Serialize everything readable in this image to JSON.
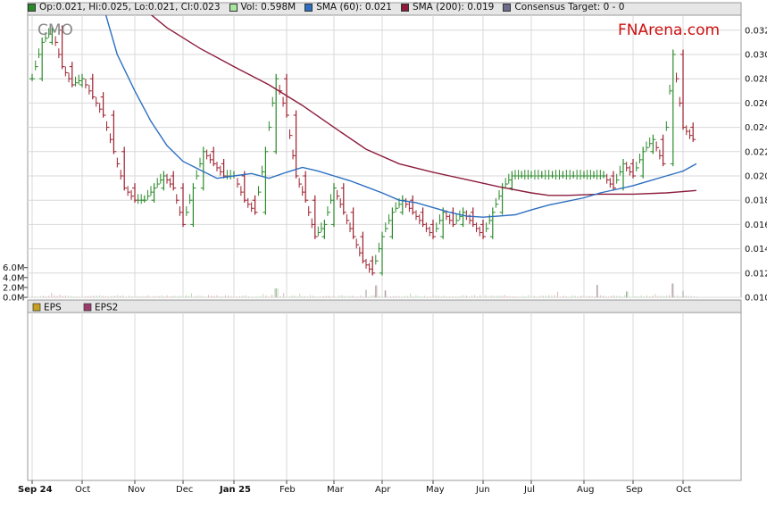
{
  "header": {
    "legend": [
      {
        "label": "Op:0.021, Hi:0.025, Lo:0.021, Cl:0.023",
        "color": "#2a8a2a"
      },
      {
        "label": "Vol: 0.598M",
        "color": "#a8e6a0"
      },
      {
        "label": "SMA (60): 0.021",
        "color": "#2c6fc1"
      },
      {
        "label": "SMA (200): 0.019",
        "color": "#8c1c3c"
      },
      {
        "label": "Consensus Target: 0 - 0",
        "color": "#6b6b8c"
      }
    ],
    "ticker": "CMO",
    "brand": "FNArena.com",
    "brand_color": "#cc1111"
  },
  "lower_legend": [
    {
      "label": "EPS",
      "color": "#c8a020"
    },
    {
      "label": "EPS2",
      "color": "#9c3c6c"
    }
  ],
  "chart_data": {
    "type": "bar",
    "subtype": "ohlc-bars",
    "x_ticks": [
      "Sep 24",
      "Oct",
      "Nov",
      "Dec",
      "Jan 25",
      "Feb",
      "Mar",
      "Apr",
      "May",
      "Jun",
      "Jul",
      "Aug",
      "Sep",
      "Oct"
    ],
    "bold_ticks": [
      "Sep 24",
      "Jan 25"
    ],
    "price_axis": {
      "ticks": [
        "0.032",
        "0.030",
        "0.028",
        "0.026",
        "0.024",
        "0.022",
        "0.020",
        "0.018",
        "0.016",
        "0.014",
        "0.012",
        "0.010"
      ],
      "ylim": [
        0.01,
        0.0325
      ]
    },
    "volume_axis": {
      "ticks": [
        "6.0M",
        "4.0M",
        "2.0M",
        "0.0M"
      ],
      "ylim": [
        0,
        7.0
      ]
    },
    "grid": true,
    "colors": {
      "up": "#2a8a2a",
      "down": "#9c1f2e",
      "sma60": "#2c6fc1",
      "sma200": "#8c1c3c",
      "volume": "#b0b0b0"
    },
    "price_points": [
      {
        "t": 0.0,
        "c": 0.028
      },
      {
        "t": 0.3,
        "c": 0.031
      },
      {
        "t": 0.6,
        "c": 0.032
      },
      {
        "t": 0.9,
        "c": 0.029
      },
      {
        "t": 1.2,
        "c": 0.0275
      },
      {
        "t": 1.5,
        "c": 0.028
      },
      {
        "t": 1.8,
        "c": 0.0265
      },
      {
        "t": 2.1,
        "c": 0.025
      },
      {
        "t": 2.4,
        "c": 0.022
      },
      {
        "t": 2.7,
        "c": 0.019
      },
      {
        "t": 3.0,
        "c": 0.018
      },
      {
        "t": 3.3,
        "c": 0.018
      },
      {
        "t": 3.6,
        "c": 0.019
      },
      {
        "t": 3.9,
        "c": 0.02
      },
      {
        "t": 4.2,
        "c": 0.019
      },
      {
        "t": 4.5,
        "c": 0.016
      },
      {
        "t": 4.8,
        "c": 0.019
      },
      {
        "t": 5.1,
        "c": 0.022
      },
      {
        "t": 5.4,
        "c": 0.021
      },
      {
        "t": 5.7,
        "c": 0.02
      },
      {
        "t": 6.0,
        "c": 0.02
      },
      {
        "t": 6.3,
        "c": 0.018
      },
      {
        "t": 6.6,
        "c": 0.017
      },
      {
        "t": 6.9,
        "c": 0.022
      },
      {
        "t": 7.2,
        "c": 0.028
      },
      {
        "t": 7.5,
        "c": 0.025
      },
      {
        "t": 7.8,
        "c": 0.02
      },
      {
        "t": 8.1,
        "c": 0.018
      },
      {
        "t": 8.4,
        "c": 0.015
      },
      {
        "t": 8.7,
        "c": 0.016
      },
      {
        "t": 9.0,
        "c": 0.019
      },
      {
        "t": 9.3,
        "c": 0.017
      },
      {
        "t": 9.6,
        "c": 0.015
      },
      {
        "t": 9.9,
        "c": 0.013
      },
      {
        "t": 10.2,
        "c": 0.012
      },
      {
        "t": 10.5,
        "c": 0.015
      },
      {
        "t": 10.8,
        "c": 0.017
      },
      {
        "t": 11.1,
        "c": 0.018
      },
      {
        "t": 11.4,
        "c": 0.017
      },
      {
        "t": 11.7,
        "c": 0.016
      },
      {
        "t": 12.0,
        "c": 0.015
      },
      {
        "t": 12.3,
        "c": 0.017
      },
      {
        "t": 12.6,
        "c": 0.016
      },
      {
        "t": 12.9,
        "c": 0.017
      },
      {
        "t": 13.2,
        "c": 0.016
      },
      {
        "t": 13.5,
        "c": 0.015
      },
      {
        "t": 13.8,
        "c": 0.017
      },
      {
        "t": 14.1,
        "c": 0.019
      },
      {
        "t": 14.4,
        "c": 0.02
      },
      {
        "t": 14.7,
        "c": 0.02
      },
      {
        "t": 15.0,
        "c": 0.02
      },
      {
        "t": 15.3,
        "c": 0.02
      },
      {
        "t": 15.6,
        "c": 0.02
      },
      {
        "t": 15.9,
        "c": 0.02
      },
      {
        "t": 16.2,
        "c": 0.02
      },
      {
        "t": 16.5,
        "c": 0.02
      },
      {
        "t": 16.8,
        "c": 0.02
      },
      {
        "t": 17.1,
        "c": 0.02
      },
      {
        "t": 17.4,
        "c": 0.019
      },
      {
        "t": 17.7,
        "c": 0.021
      },
      {
        "t": 18.0,
        "c": 0.02
      },
      {
        "t": 18.3,
        "c": 0.022
      },
      {
        "t": 18.6,
        "c": 0.023
      },
      {
        "t": 18.9,
        "c": 0.021
      },
      {
        "t": 19.2,
        "c": 0.03
      },
      {
        "t": 19.5,
        "c": 0.024
      },
      {
        "t": 19.8,
        "c": 0.023
      }
    ],
    "sma60": [
      {
        "t": 2.0,
        "v": 0.035
      },
      {
        "t": 2.5,
        "v": 0.03
      },
      {
        "t": 3.0,
        "v": 0.027
      },
      {
        "t": 3.5,
        "v": 0.0245
      },
      {
        "t": 4.0,
        "v": 0.0225
      },
      {
        "t": 4.5,
        "v": 0.0212
      },
      {
        "t": 5.0,
        "v": 0.0205
      },
      {
        "t": 5.5,
        "v": 0.0198
      },
      {
        "t": 6.0,
        "v": 0.02
      },
      {
        "t": 6.5,
        "v": 0.0202
      },
      {
        "t": 7.0,
        "v": 0.0198
      },
      {
        "t": 7.5,
        "v": 0.0203
      },
      {
        "t": 8.0,
        "v": 0.0207
      },
      {
        "t": 8.5,
        "v": 0.0204
      },
      {
        "t": 9.0,
        "v": 0.02
      },
      {
        "t": 9.5,
        "v": 0.0196
      },
      {
        "t": 10.0,
        "v": 0.0191
      },
      {
        "t": 10.5,
        "v": 0.0186
      },
      {
        "t": 11.0,
        "v": 0.018
      },
      {
        "t": 11.5,
        "v": 0.0178
      },
      {
        "t": 12.0,
        "v": 0.0174
      },
      {
        "t": 12.5,
        "v": 0.017
      },
      {
        "t": 13.0,
        "v": 0.0167
      },
      {
        "t": 13.5,
        "v": 0.0166
      },
      {
        "t": 14.0,
        "v": 0.0167
      },
      {
        "t": 14.5,
        "v": 0.0168
      },
      {
        "t": 15.0,
        "v": 0.0172
      },
      {
        "t": 15.5,
        "v": 0.0176
      },
      {
        "t": 16.0,
        "v": 0.0179
      },
      {
        "t": 16.5,
        "v": 0.0182
      },
      {
        "t": 17.0,
        "v": 0.0186
      },
      {
        "t": 17.5,
        "v": 0.0189
      },
      {
        "t": 18.0,
        "v": 0.0192
      },
      {
        "t": 18.5,
        "v": 0.0196
      },
      {
        "t": 19.0,
        "v": 0.02
      },
      {
        "t": 19.5,
        "v": 0.0204
      },
      {
        "t": 19.9,
        "v": 0.021
      }
    ],
    "sma200": [
      {
        "t": 3.4,
        "v": 0.0335
      },
      {
        "t": 4.0,
        "v": 0.0322
      },
      {
        "t": 5.0,
        "v": 0.0305
      },
      {
        "t": 6.0,
        "v": 0.029
      },
      {
        "t": 7.0,
        "v": 0.0275
      },
      {
        "t": 8.0,
        "v": 0.0258
      },
      {
        "t": 9.0,
        "v": 0.024
      },
      {
        "t": 10.0,
        "v": 0.0222
      },
      {
        "t": 11.0,
        "v": 0.021
      },
      {
        "t": 12.0,
        "v": 0.0203
      },
      {
        "t": 13.0,
        "v": 0.0197
      },
      {
        "t": 14.0,
        "v": 0.0191
      },
      {
        "t": 15.0,
        "v": 0.0186
      },
      {
        "t": 15.5,
        "v": 0.0184
      },
      {
        "t": 16.0,
        "v": 0.0184
      },
      {
        "t": 17.0,
        "v": 0.0185
      },
      {
        "t": 18.0,
        "v": 0.0185
      },
      {
        "t": 19.0,
        "v": 0.0186
      },
      {
        "t": 19.9,
        "v": 0.0188
      }
    ],
    "volume_peaks": [
      {
        "t": 7.2,
        "v": 1.8
      },
      {
        "t": 10.0,
        "v": 1.5
      },
      {
        "t": 10.3,
        "v": 2.4
      },
      {
        "t": 10.6,
        "v": 1.4
      },
      {
        "t": 16.9,
        "v": 2.5
      },
      {
        "t": 17.8,
        "v": 1.2
      },
      {
        "t": 19.2,
        "v": 2.8
      },
      {
        "t": 19.5,
        "v": 1.3
      }
    ]
  }
}
